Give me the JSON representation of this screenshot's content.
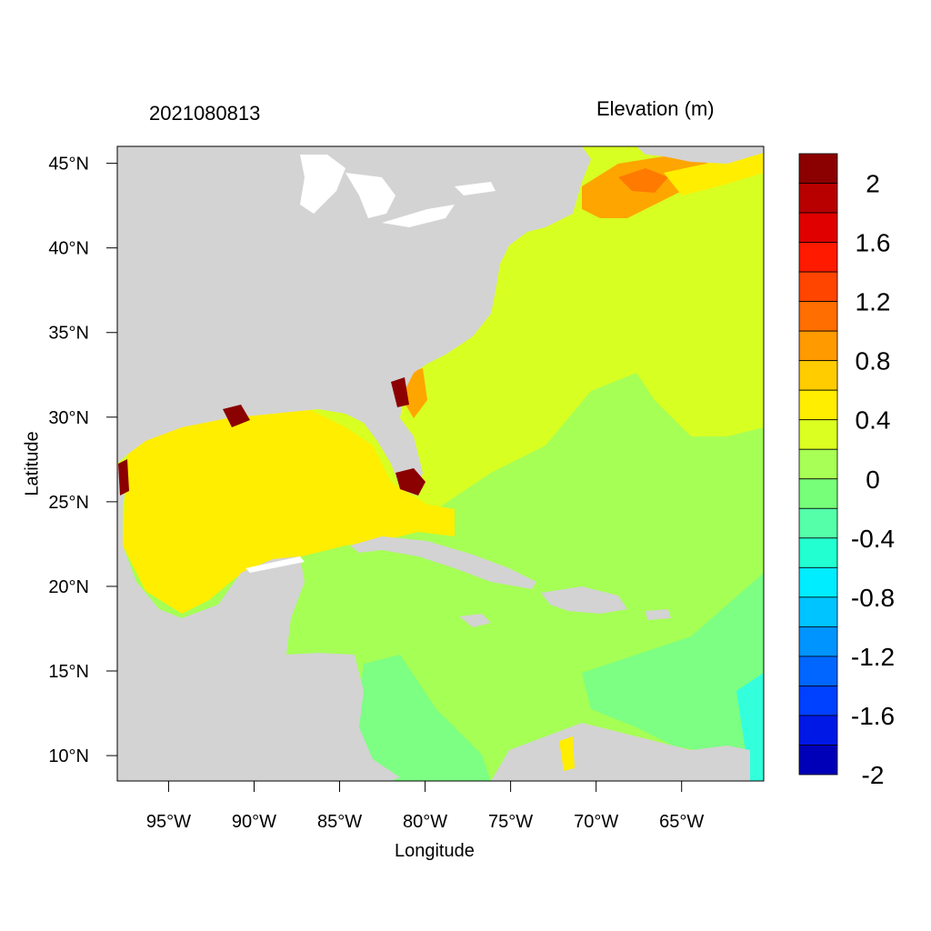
{
  "titles": {
    "left": "2021080813",
    "right": "Elevation (m)"
  },
  "axes": {
    "xlabel": "Longitude",
    "ylabel": "Latitude",
    "xticks": [
      {
        "value": -95,
        "label": "95°W"
      },
      {
        "value": -90,
        "label": "90°W"
      },
      {
        "value": -85,
        "label": "85°W"
      },
      {
        "value": -80,
        "label": "80°W"
      },
      {
        "value": -75,
        "label": "75°W"
      },
      {
        "value": -70,
        "label": "70°W"
      },
      {
        "value": -65,
        "label": "65°W"
      }
    ],
    "yticks": [
      {
        "value": 45,
        "label": "45°N"
      },
      {
        "value": 40,
        "label": "40°N"
      },
      {
        "value": 35,
        "label": "35°N"
      },
      {
        "value": 30,
        "label": "30°N"
      },
      {
        "value": 25,
        "label": "25°N"
      },
      {
        "value": 20,
        "label": "20°N"
      },
      {
        "value": 15,
        "label": "15°N"
      },
      {
        "value": 10,
        "label": "10°N"
      }
    ],
    "xlim": [
      -98,
      -60.2
    ],
    "ylim": [
      8.5,
      46
    ]
  },
  "colorbar": {
    "colors": [
      "#8b0000",
      "#b80000",
      "#e00000",
      "#ff1a00",
      "#ff4500",
      "#ff6e00",
      "#ff9a00",
      "#ffcc00",
      "#ffee00",
      "#dcff22",
      "#a8ff55",
      "#78ff7a",
      "#55ffaa",
      "#22ffd0",
      "#00ecff",
      "#00c4ff",
      "#0094ff",
      "#0066ff",
      "#0040ff",
      "#0018e6",
      "#0000b8"
    ],
    "labels": [
      "2",
      "1.6",
      "1.2",
      "0.8",
      "0.4",
      "0",
      "-0.4",
      "-0.8",
      "-1.2",
      "-1.6",
      "-2"
    ]
  },
  "colors": {
    "land": "#d3d3d3",
    "lake": "#ffffff",
    "gulf": "#ffff00",
    "atlantic": "#d8ff22",
    "caribbean": "#a6ff55",
    "low": "#7cff82",
    "orange": "#ffa500",
    "deep_orange": "#ff7a00",
    "surge": "#8b0000",
    "cyan": "#33ffdd"
  }
}
